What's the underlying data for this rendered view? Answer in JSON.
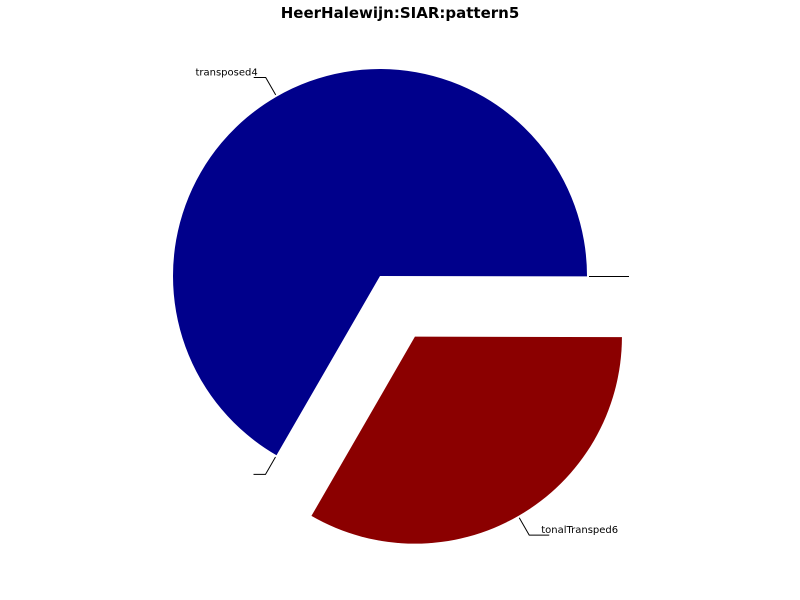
{
  "chart_data": {
    "type": "pie",
    "title": "HeerHalewijn:SIAR:pattern5",
    "slices": [
      {
        "label": "transposed4",
        "value": 66.7,
        "color": "#00008B",
        "exploded": false
      },
      {
        "label": "",
        "value": 0,
        "color": "#FFFFFF",
        "exploded": false
      },
      {
        "label": "tonalTransped6",
        "value": 33.3,
        "color": "#8B0000",
        "exploded": true
      },
      {
        "label": "",
        "value": 0,
        "color": "#FFFFFF",
        "exploded": false
      }
    ],
    "legend": "none",
    "grid": false
  }
}
